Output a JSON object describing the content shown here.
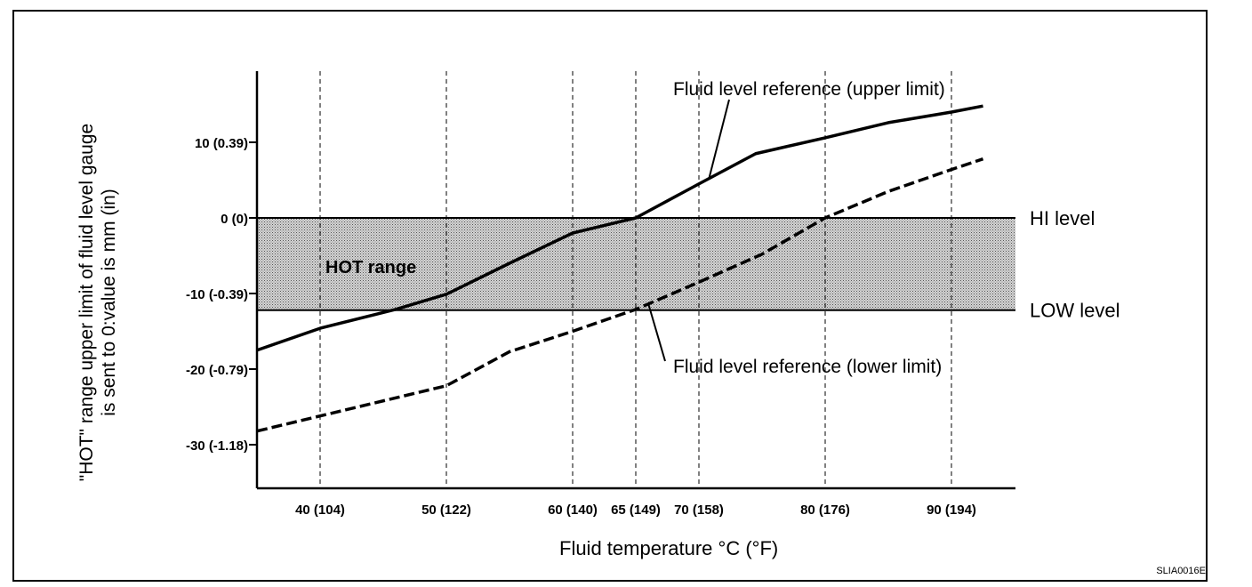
{
  "chart_data": {
    "type": "line",
    "title": "",
    "xlabel": "Fluid temperature °C (°F)",
    "ylabel_lines": [
      "\"HOT\" range upper limit of fluid level gauge",
      "is sent to 0:value is mm (in)"
    ],
    "x_ticks": [
      {
        "x": 40,
        "label": "40 (104)"
      },
      {
        "x": 50,
        "label": "50 (122)"
      },
      {
        "x": 60,
        "label": "60 (140)"
      },
      {
        "x": 65,
        "label": "65 (149)"
      },
      {
        "x": 70,
        "label": "70 (158)"
      },
      {
        "x": 80,
        "label": "80 (176)"
      },
      {
        "x": 90,
        "label": "90 (194)"
      }
    ],
    "y_ticks": [
      {
        "y": 10,
        "label": "10 (0.39)"
      },
      {
        "y": 0,
        "label": "0 (0)"
      },
      {
        "y": -10,
        "label": "-10 (-0.39)"
      },
      {
        "y": -20,
        "label": "-20 (-0.79)"
      },
      {
        "y": -30,
        "label": "-30 (-1.18)"
      }
    ],
    "xlim": [
      35,
      95
    ],
    "ylim": [
      -35,
      19
    ],
    "grid": "vertical dashed at x ticks",
    "hot_range": {
      "label": "HOT range",
      "ymin": -12.2,
      "ymax": 0,
      "color": "#b0b0b0"
    },
    "levels": [
      {
        "y": 0,
        "label": "HI level"
      },
      {
        "y": -12.2,
        "label": "LOW level"
      }
    ],
    "series": [
      {
        "name": "Fluid level reference (upper limit)",
        "style": "solid",
        "x": [
          35,
          40,
          46,
          50,
          55,
          60,
          65,
          70,
          74.5,
          80,
          85,
          90,
          92.5
        ],
        "y": [
          -17.5,
          -14.6,
          -12.1,
          -10.1,
          -6,
          -2,
          0,
          4.5,
          8.5,
          10.6,
          12.6,
          14,
          14.8
        ]
      },
      {
        "name": "Fluid level reference (lower limit)",
        "style": "dashed",
        "x": [
          35,
          40,
          50,
          55,
          60,
          65,
          70,
          75,
          80,
          85,
          90,
          92.5
        ],
        "y": [
          -28.2,
          -26.2,
          -22.2,
          -17.7,
          -15,
          -12.1,
          -8.5,
          -4.8,
          0,
          3.5,
          6.4,
          7.8
        ]
      }
    ],
    "annotations": [
      {
        "text": "Fluid level reference (upper limit)",
        "series": 0,
        "point_x": 70.8
      },
      {
        "text": "Fluid level reference (lower limit)",
        "series": 1,
        "point_x": 66
      }
    ],
    "reference_code": "SLIA0016E"
  }
}
